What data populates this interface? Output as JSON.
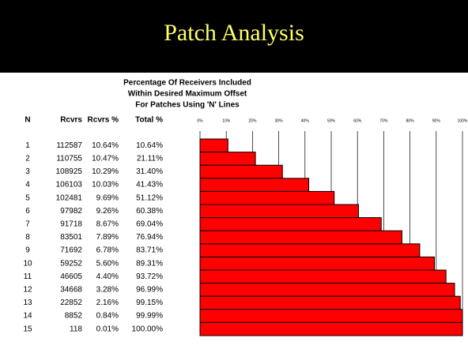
{
  "header": {
    "title": "Patch Analysis"
  },
  "chart_data": {
    "type": "bar",
    "orientation": "horizontal",
    "title": [
      "Percentage Of Receivers Included",
      "Within Desired Maximum Offset",
      "For Patches Using 'N' Lines"
    ],
    "columns": [
      "N",
      "Rcvrs",
      "Rcvrs %",
      "Total %"
    ],
    "categories": [
      "1",
      "2",
      "3",
      "4",
      "5",
      "6",
      "7",
      "8",
      "9",
      "10",
      "11",
      "12",
      "13",
      "14",
      "15"
    ],
    "receivers": [
      "112587",
      "110755",
      "108925",
      "106103",
      "102481",
      "97982",
      "91718",
      "83501",
      "71692",
      "59252",
      "46605",
      "34668",
      "22852",
      "8852",
      "118"
    ],
    "receiver_percents": [
      "10.64%",
      "10.47%",
      "10.29%",
      "10.03%",
      "9.69%",
      "9.26%",
      "8.67%",
      "7.89%",
      "6.78%",
      "5.60%",
      "4.40%",
      "3.28%",
      "2.16%",
      "0.84%",
      "0.01%"
    ],
    "values": [
      10.64,
      21.11,
      31.4,
      41.43,
      51.12,
      60.38,
      69.04,
      76.94,
      83.71,
      89.31,
      93.72,
      96.99,
      99.15,
      99.99,
      100.0
    ],
    "value_labels": [
      "10.64%",
      "21.11%",
      "31.40%",
      "41.43%",
      "51.12%",
      "60.38%",
      "69.04%",
      "76.94%",
      "83.71%",
      "89.31%",
      "93.72%",
      "96.99%",
      "99.15%",
      "99.99%",
      "100.00%"
    ],
    "xlim": [
      0,
      100
    ],
    "xticks": [
      {
        "value": 0,
        "label": "0%"
      },
      {
        "value": 10,
        "label": "10%"
      },
      {
        "value": 20,
        "label": "20%"
      },
      {
        "value": 30,
        "label": "30%"
      },
      {
        "value": 40,
        "label": "40%"
      },
      {
        "value": 50,
        "label": "50%"
      },
      {
        "value": 60,
        "label": "60%"
      },
      {
        "value": 70,
        "label": "70%"
      },
      {
        "value": 80,
        "label": "80%"
      },
      {
        "value": 90,
        "label": "90%"
      },
      {
        "value": 100,
        "label": "100%"
      }
    ],
    "grid": true,
    "color": "#ff0000"
  }
}
